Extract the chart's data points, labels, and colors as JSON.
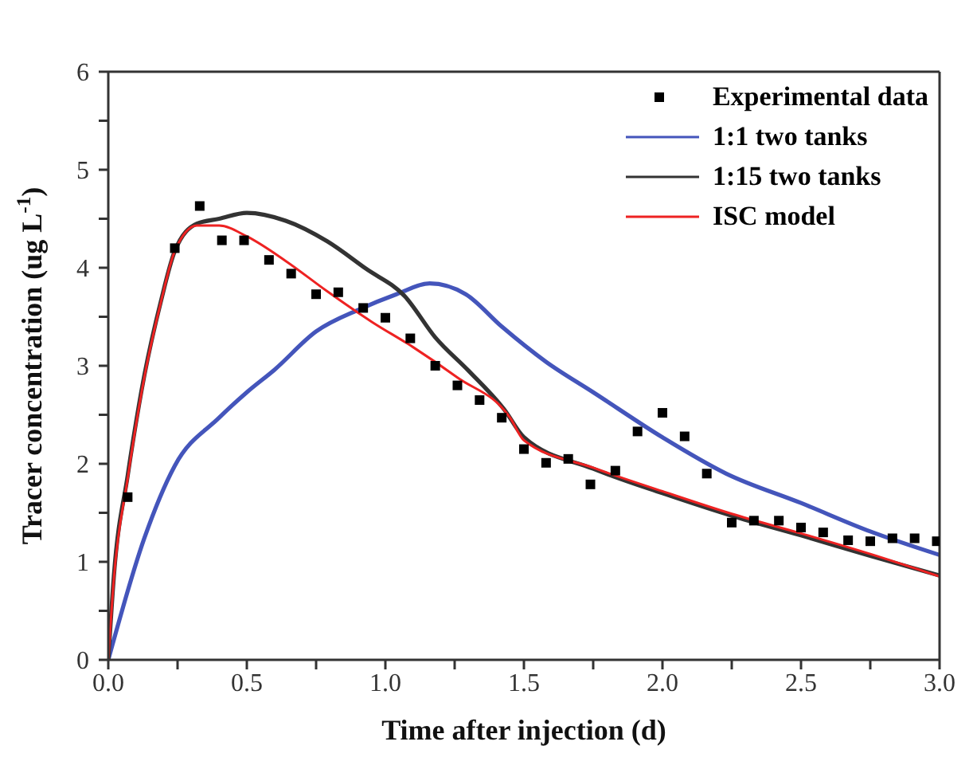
{
  "chart_data": {
    "type": "line",
    "xlabel": "Time after injection (d)",
    "ylabel": "Tracer concentration (ug L$^{-1}$)",
    "xlim": [
      0,
      3
    ],
    "xticks": [
      {
        "value": 0,
        "label": "0.0"
      },
      {
        "value": 0.25,
        "label": null
      },
      {
        "value": 0.5,
        "label": "0.5"
      },
      {
        "value": 0.75,
        "label": null
      },
      {
        "value": 1,
        "label": "1.0"
      },
      {
        "value": 1.25,
        "label": null
      },
      {
        "value": 1.5,
        "label": "1.5"
      },
      {
        "value": 1.75,
        "label": null
      },
      {
        "value": 2,
        "label": "2.0"
      },
      {
        "value": 2.25,
        "label": null
      },
      {
        "value": 2.5,
        "label": "2.5"
      },
      {
        "value": 2.75,
        "label": null
      },
      {
        "value": 3,
        "label": "3.0"
      }
    ],
    "ylim": [
      0,
      6
    ],
    "yticks": [
      0,
      {
        "value": 0.5,
        "label": null
      },
      1,
      {
        "value": 1.5,
        "label": null
      },
      2,
      {
        "value": 2.5,
        "label": null
      },
      3,
      {
        "value": 3.5,
        "label": null
      },
      4,
      {
        "value": 4.5,
        "label": null
      },
      5,
      {
        "value": 5.5,
        "label": null
      },
      6
    ],
    "legend": "top right",
    "series": [
      {
        "name": "Experimental data",
        "type": "scatter",
        "marker": "square",
        "color": "#000000",
        "x": [
          0.07,
          0.24,
          0.33,
          0.41,
          0.49,
          0.58,
          0.66,
          0.75,
          0.83,
          0.92,
          1.0,
          1.09,
          1.18,
          1.26,
          1.34,
          1.42,
          1.5,
          1.58,
          1.66,
          1.74,
          1.83,
          1.91,
          2.0,
          2.08,
          2.16,
          2.25,
          2.33,
          2.42,
          2.5,
          2.58,
          2.67,
          2.75,
          2.83,
          2.91,
          2.99
        ],
        "values": [
          1.66,
          4.2,
          4.63,
          4.28,
          4.28,
          4.08,
          3.94,
          3.73,
          3.75,
          3.59,
          3.49,
          3.28,
          3.0,
          2.8,
          2.65,
          2.47,
          2.15,
          2.01,
          2.05,
          1.79,
          1.93,
          2.33,
          2.52,
          2.28,
          1.9,
          1.4,
          1.42,
          1.42,
          1.35,
          1.3,
          1.22,
          1.21,
          1.24,
          1.24,
          1.21
        ]
      },
      {
        "name": "1:1 two tanks",
        "color": "#4455bb",
        "x": [
          0,
          0.13,
          0.24,
          0.4,
          0.5,
          0.6,
          0.75,
          0.91,
          1.04,
          1.16,
          1.29,
          1.42,
          1.58,
          1.75,
          2.0,
          2.23,
          2.5,
          2.75,
          3.0
        ],
        "values": [
          0,
          1.24,
          1.98,
          2.47,
          2.73,
          2.96,
          3.35,
          3.58,
          3.73,
          3.84,
          3.73,
          3.4,
          3.04,
          2.73,
          2.27,
          1.9,
          1.6,
          1.31,
          1.07
        ]
      },
      {
        "name": "1:15 two tanks",
        "color": "#333333",
        "x": [
          0,
          0.02,
          0.07,
          0.13,
          0.19,
          0.24,
          0.32,
          0.4,
          0.5,
          0.64,
          0.79,
          0.93,
          1.07,
          1.18,
          1.3,
          1.43,
          1.5,
          1.75,
          2.0,
          2.25,
          2.5,
          2.75,
          3.0
        ],
        "values": [
          0,
          0.85,
          1.88,
          2.9,
          3.66,
          4.17,
          4.45,
          4.5,
          4.56,
          4.48,
          4.27,
          3.99,
          3.71,
          3.29,
          2.95,
          2.55,
          2.27,
          1.95,
          1.7,
          1.47,
          1.27,
          1.06,
          0.86
        ]
      },
      {
        "name": "ISC model",
        "color": "#ee2222",
        "x": [
          0,
          0.02,
          0.07,
          0.13,
          0.19,
          0.24,
          0.32,
          0.4,
          0.5,
          0.64,
          0.79,
          0.95,
          1.1,
          1.26,
          1.45,
          1.5,
          1.75,
          2.0,
          2.25,
          2.5,
          2.75,
          3.0
        ],
        "values": [
          0,
          0.82,
          1.85,
          2.88,
          3.65,
          4.17,
          4.43,
          4.43,
          4.32,
          4.07,
          3.76,
          3.45,
          3.19,
          2.88,
          2.47,
          2.24,
          1.96,
          1.72,
          1.49,
          1.29,
          1.08,
          0.85
        ]
      }
    ]
  }
}
